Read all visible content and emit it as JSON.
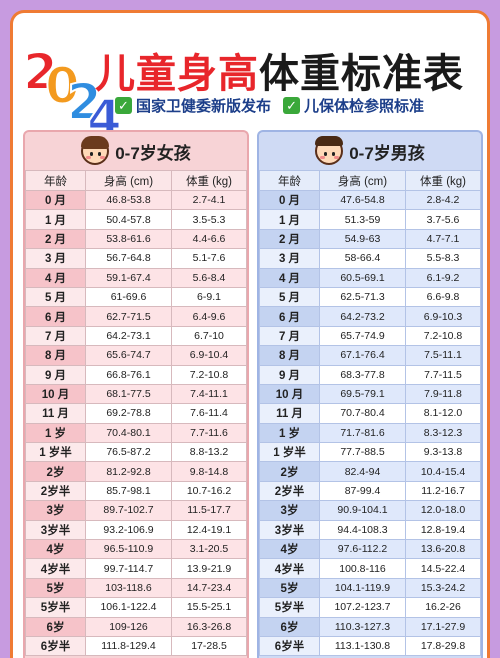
{
  "header": {
    "year_digits": [
      "2",
      "0",
      "2",
      "4"
    ],
    "title_red": "儿童身高",
    "title_dark": "体重标准表",
    "tags": [
      "国家卫健委新版发布",
      "儿保体检参照标准"
    ],
    "check_glyph": "✓"
  },
  "colors": {
    "accent_red": "#e8262b",
    "border_orange": "#ef7b34",
    "girl_panel": "#f7d3d6",
    "boy_panel": "#cfdaf4",
    "background": "#c79be0"
  },
  "columns": {
    "age": "年龄",
    "height": "身高 (cm)",
    "weight": "体重 (kg)"
  },
  "girls": {
    "title": "0-7岁女孩",
    "icon": "girl-face-icon",
    "rows": [
      {
        "age": "0 月",
        "height": "46.8-53.8",
        "weight": "2.7-4.1"
      },
      {
        "age": "1 月",
        "height": "50.4-57.8",
        "weight": "3.5-5.3"
      },
      {
        "age": "2 月",
        "height": "53.8-61.6",
        "weight": "4.4-6.6"
      },
      {
        "age": "3 月",
        "height": "56.7-64.8",
        "weight": "5.1-7.6"
      },
      {
        "age": "4 月",
        "height": "59.1-67.4",
        "weight": "5.6-8.4"
      },
      {
        "age": "5 月",
        "height": "61-69.6",
        "weight": "6-9.1"
      },
      {
        "age": "6 月",
        "height": "62.7-71.5",
        "weight": "6.4-9.6"
      },
      {
        "age": "7 月",
        "height": "64.2-73.1",
        "weight": "6.7-10"
      },
      {
        "age": "8 月",
        "height": "65.6-74.7",
        "weight": "6.9-10.4"
      },
      {
        "age": "9 月",
        "height": "66.8-76.1",
        "weight": "7.2-10.8"
      },
      {
        "age": "10 月",
        "height": "68.1-77.5",
        "weight": "7.4-11.1"
      },
      {
        "age": "11 月",
        "height": "69.2-78.8",
        "weight": "7.6-11.4"
      },
      {
        "age": "1 岁",
        "height": "70.4-80.1",
        "weight": "7.7-11.6"
      },
      {
        "age": "1 岁半",
        "height": "76.5-87.2",
        "weight": "8.8-13.2"
      },
      {
        "age": "2岁",
        "height": "81.2-92.8",
        "weight": "9.8-14.8"
      },
      {
        "age": "2岁半",
        "height": "85.7-98.1",
        "weight": "10.7-16.2"
      },
      {
        "age": "3岁",
        "height": "89.7-102.7",
        "weight": "11.5-17.7"
      },
      {
        "age": "3岁半",
        "height": "93.2-106.9",
        "weight": "12.4-19.1"
      },
      {
        "age": "4岁",
        "height": "96.5-110.9",
        "weight": "3.1-20.5"
      },
      {
        "age": "4岁半",
        "height": "99.7-114.7",
        "weight": "13.9-21.9"
      },
      {
        "age": "5岁",
        "height": "103-118.6",
        "weight": "14.7-23.4"
      },
      {
        "age": "5岁半",
        "height": "106.1-122.4",
        "weight": "15.5-25.1"
      },
      {
        "age": "6岁",
        "height": "109-126",
        "weight": "16.3-26.8"
      },
      {
        "age": "6岁半",
        "height": "111.8-129.4",
        "weight": "17-28.5"
      }
    ]
  },
  "boys": {
    "title": "0-7岁男孩",
    "icon": "boy-face-icon",
    "rows": [
      {
        "age": "0 月",
        "height": "47.6-54.8",
        "weight": "2.8-4.2"
      },
      {
        "age": "1 月",
        "height": "51.3-59",
        "weight": "3.7-5.6"
      },
      {
        "age": "2 月",
        "height": "54.9-63",
        "weight": "4.7-7.1"
      },
      {
        "age": "3 月",
        "height": "58-66.4",
        "weight": "5.5-8.3"
      },
      {
        "age": "4 月",
        "height": "60.5-69.1",
        "weight": "6.1-9.2"
      },
      {
        "age": "5 月",
        "height": "62.5-71.3",
        "weight": "6.6-9.8"
      },
      {
        "age": "6 月",
        "height": "64.2-73.2",
        "weight": "6.9-10.3"
      },
      {
        "age": "7 月",
        "height": "65.7-74.9",
        "weight": "7.2-10.8"
      },
      {
        "age": "8 月",
        "height": "67.1-76.4",
        "weight": "7.5-11.1"
      },
      {
        "age": "9 月",
        "height": "68.3-77.8",
        "weight": "7.7-11.5"
      },
      {
        "age": "10 月",
        "height": "69.5-79.1",
        "weight": "7.9-11.8"
      },
      {
        "age": "11 月",
        "height": "70.7-80.4",
        "weight": "8.1-12.0"
      },
      {
        "age": "1 岁",
        "height": "71.7-81.6",
        "weight": "8.3-12.3"
      },
      {
        "age": "1 岁半",
        "height": "77.7-88.5",
        "weight": "9.3-13.8"
      },
      {
        "age": "2岁",
        "height": "82.4-94",
        "weight": "10.4-15.4"
      },
      {
        "age": "2岁半",
        "height": "87-99.4",
        "weight": "11.2-16.7"
      },
      {
        "age": "3岁",
        "height": "90.9-104.1",
        "weight": "12.0-18.0"
      },
      {
        "age": "3岁半",
        "height": "94.4-108.3",
        "weight": "12.8-19.4"
      },
      {
        "age": "4岁",
        "height": "97.6-112.2",
        "weight": "13.6-20.8"
      },
      {
        "age": "4岁半",
        "height": "100.8-116",
        "weight": "14.5-22.4"
      },
      {
        "age": "5岁",
        "height": "104.1-119.9",
        "weight": "15.3-24.2"
      },
      {
        "age": "5岁半",
        "height": "107.2-123.7",
        "weight": "16.2-26"
      },
      {
        "age": "6岁",
        "height": "110.3-127.3",
        "weight": "17.1-27.9"
      },
      {
        "age": "6岁半",
        "height": "113.1-130.8",
        "weight": "17.8-29.8"
      }
    ]
  }
}
